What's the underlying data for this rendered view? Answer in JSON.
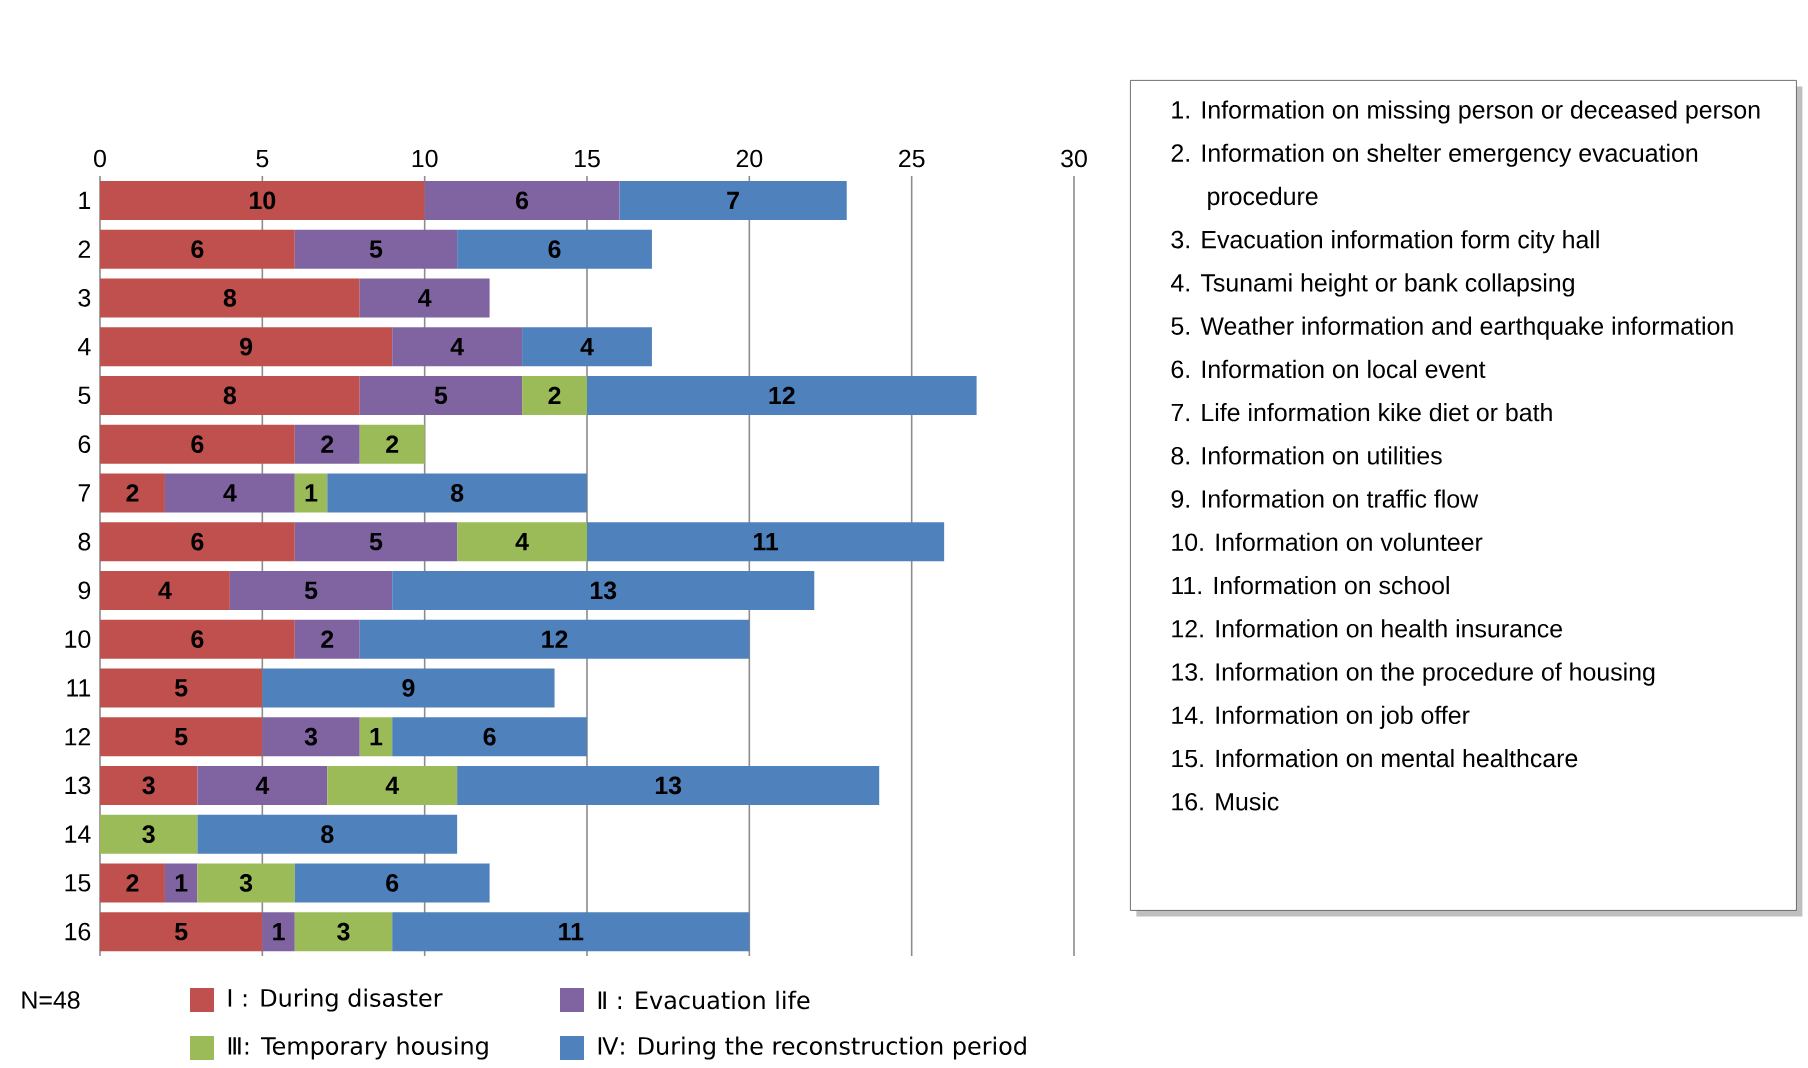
{
  "chart_data": {
    "type": "bar",
    "orientation": "horizontal",
    "stacked": true,
    "data_labels": true,
    "grid": "x",
    "legend": "bottom",
    "categories": [
      "1",
      "2",
      "3",
      "4",
      "5",
      "6",
      "7",
      "8",
      "9",
      "10",
      "11",
      "12",
      "13",
      "14",
      "15",
      "16"
    ],
    "xlim": [
      0,
      30
    ],
    "xticks": [
      0,
      5,
      10,
      15,
      20,
      25,
      30
    ],
    "series": [
      {
        "name": "Ⅰ : During disaster",
        "color": "#c0504d",
        "values": [
          10,
          6,
          8,
          9,
          8,
          6,
          2,
          6,
          4,
          6,
          5,
          5,
          3,
          null,
          2,
          5
        ]
      },
      {
        "name": "Ⅱ : Evacuation life",
        "color": "#8064a2",
        "values": [
          6,
          5,
          4,
          4,
          5,
          2,
          4,
          5,
          5,
          2,
          null,
          3,
          4,
          null,
          1,
          1
        ]
      },
      {
        "name": "Ⅲ: Temporary housing",
        "color": "#9bbb59",
        "values": [
          null,
          null,
          null,
          null,
          2,
          2,
          1,
          4,
          null,
          null,
          null,
          1,
          4,
          3,
          3,
          3
        ]
      },
      {
        "name": "Ⅳ: During the reconstruction period",
        "color": "#4f81bd",
        "values": [
          7,
          6,
          null,
          4,
          12,
          null,
          8,
          11,
          13,
          12,
          9,
          6,
          13,
          8,
          6,
          11
        ]
      }
    ],
    "annotations": [
      "N=48",
      "1. Information on missing person or deceased person",
      "2. Information on shelter emergency evacuation procedure",
      "3. Evacuation information form city hall",
      "4. Tsunami height or bank collapsing",
      "5. Weather information and earthquake information",
      "6. Information on local event",
      "7. Life information kike diet or bath",
      "8. Information on utilities",
      "9. Information on traffic flow",
      "10. Information on volunteer",
      "11. Information on school",
      "12. Information on health insurance",
      "13. Information on the procedure of housing",
      "14. Information on job offer",
      "15. Information on mental healthcare",
      "16. Music"
    ]
  }
}
